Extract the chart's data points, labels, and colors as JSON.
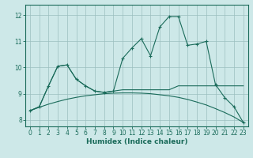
{
  "xlabel": "Humidex (Indice chaleur)",
  "xlim": [
    -0.5,
    23.5
  ],
  "ylim": [
    7.75,
    12.4
  ],
  "yticks": [
    8,
    9,
    10,
    11,
    12
  ],
  "xticks": [
    0,
    1,
    2,
    3,
    4,
    5,
    6,
    7,
    8,
    9,
    10,
    11,
    12,
    13,
    14,
    15,
    16,
    17,
    18,
    19,
    20,
    21,
    22,
    23
  ],
  "bg_color": "#cde8e8",
  "grid_color": "#9bbfbf",
  "line_color": "#1a6b5a",
  "line1_x": [
    0,
    1,
    2,
    3,
    4,
    5,
    6,
    7,
    8,
    9,
    10,
    11,
    12,
    13,
    14,
    15,
    16,
    17,
    18,
    19,
    20,
    21,
    22,
    23
  ],
  "line1_y": [
    8.35,
    8.5,
    9.3,
    10.05,
    10.1,
    9.55,
    9.3,
    9.1,
    9.05,
    9.1,
    10.35,
    10.75,
    11.1,
    10.45,
    11.55,
    11.95,
    11.95,
    10.85,
    10.9,
    11.0,
    9.35,
    8.85,
    8.5,
    7.9
  ],
  "line2_x": [
    0,
    1,
    2,
    3,
    4,
    5,
    6,
    7,
    8,
    9,
    10,
    11,
    12,
    13,
    14,
    15,
    16,
    17,
    18,
    19,
    20,
    21,
    22,
    23
  ],
  "line2_y": [
    8.35,
    8.5,
    9.3,
    10.05,
    10.1,
    9.55,
    9.3,
    9.1,
    9.05,
    9.1,
    9.15,
    9.15,
    9.15,
    9.15,
    9.15,
    9.15,
    9.3,
    9.3,
    9.3,
    9.3,
    9.3,
    9.3,
    9.3,
    9.3
  ],
  "line3_x": [
    0,
    1,
    2,
    3,
    4,
    5,
    6,
    7,
    8,
    9,
    10,
    11,
    12,
    13,
    14,
    15,
    16,
    17,
    18,
    19,
    20,
    21,
    22,
    23
  ],
  "line3_y": [
    8.35,
    8.48,
    8.6,
    8.7,
    8.79,
    8.86,
    8.92,
    8.96,
    9.0,
    9.02,
    9.03,
    9.03,
    9.02,
    9.0,
    8.96,
    8.92,
    8.86,
    8.78,
    8.68,
    8.57,
    8.43,
    8.28,
    8.11,
    7.9
  ]
}
